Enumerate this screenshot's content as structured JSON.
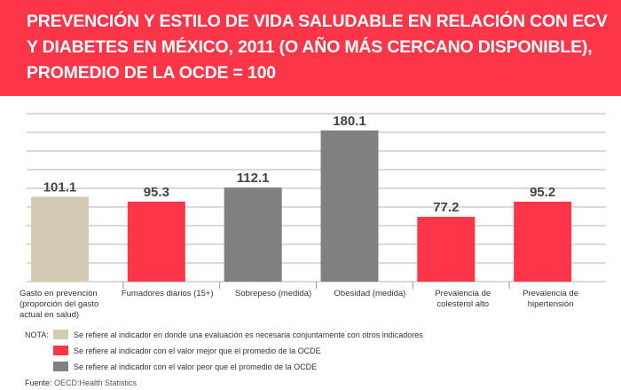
{
  "title": "PREVENCIÓN Y ESTILO DE VIDA SALUDABLE EN RELACIÓN CON ECV Y DIABETES EN MÉXICO, 2011 (O AÑO MÁS CERCANO DISPONIBLE), PROMEDIO DE LA OCDE = 100",
  "colors": {
    "header": "#fc3549",
    "beige": "#d3cbb3",
    "red": "#fc3549",
    "gray": "#808080"
  },
  "chart_data": {
    "type": "bar",
    "categories": [
      "Gasto en prevención (proporción del gasto actual en salud)",
      "Fumadores diarios (15+)",
      "Sobrepeso (medida)",
      "Obesidad (medida)",
      "Prevalencia de colesterol alto",
      "Prevalencia de hipertensión"
    ],
    "values": [
      101.1,
      95.3,
      112.1,
      180.1,
      77.2,
      95.2
    ],
    "labels": [
      "101.1",
      "95.3",
      "112.1",
      "180.1",
      "77.2",
      "95.2"
    ],
    "bar_colors": [
      "beige",
      "red",
      "gray",
      "gray",
      "red",
      "red"
    ],
    "ylim": [
      0,
      200
    ],
    "grid": true
  },
  "legend": {
    "nota": "NOTA:",
    "items": [
      {
        "color": "beige",
        "text": "Se refiere al indicador en donde una evaluación es necesaria conjuntamente con otros indicadores"
      },
      {
        "color": "red",
        "text": "Se refiere al indicador con el valor mejor que el promedio de la OCDE"
      },
      {
        "color": "gray",
        "text": "Se refiere al indicador con el valor peor que el promedio de la OCDE"
      }
    ]
  },
  "source": {
    "label": "Fuente:",
    "text": " OECD:Health Statistics"
  }
}
